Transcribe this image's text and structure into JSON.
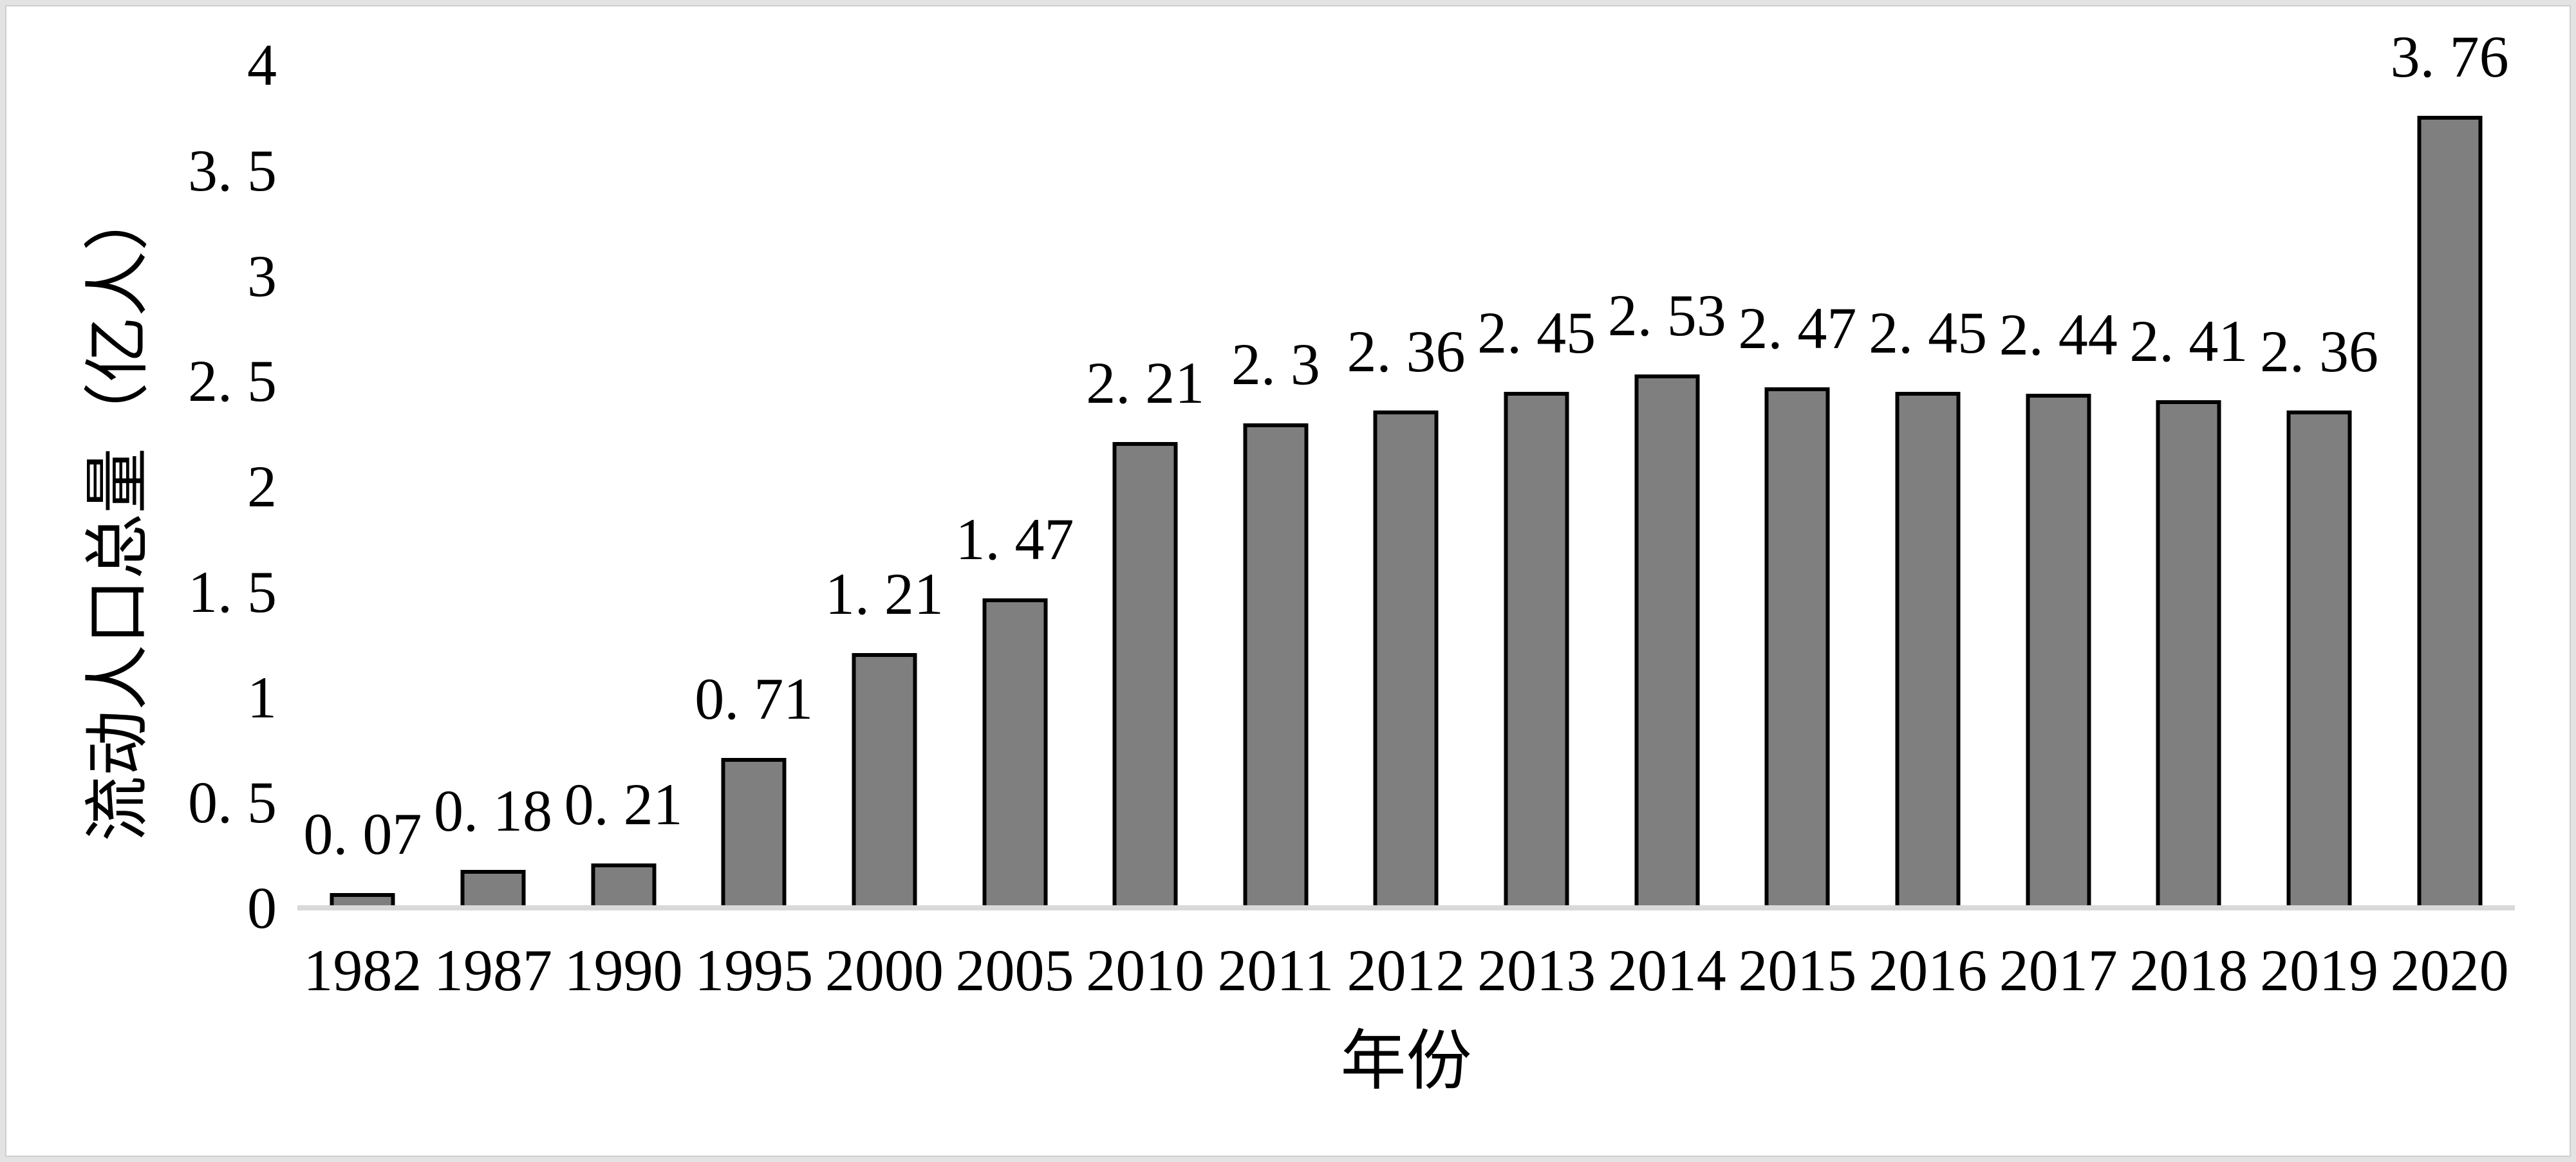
{
  "chart_data": {
    "type": "bar",
    "title": "",
    "categories": [
      "1982",
      "1987",
      "1990",
      "1995",
      "2000",
      "2005",
      "2010",
      "2011",
      "2012",
      "2013",
      "2014",
      "2015",
      "2016",
      "2017",
      "2018",
      "2019",
      "2020"
    ],
    "values": [
      0.07,
      0.18,
      0.21,
      0.71,
      1.21,
      1.47,
      2.21,
      2.3,
      2.36,
      2.45,
      2.53,
      2.47,
      2.45,
      2.44,
      2.41,
      2.36,
      3.76
    ],
    "data_labels": [
      "0.07",
      "0.18",
      "0.21",
      "0.71",
      "1.21",
      "1.47",
      "2.21",
      "2.3",
      "2.36",
      "2.45",
      "2.53",
      "2.47",
      "2.45",
      "2.44",
      "2.41",
      "2.36",
      "3.76"
    ],
    "xlabel": "年份",
    "ylabel": "流动人口总量（亿人）",
    "ylim": [
      0,
      4
    ],
    "yticks": [
      "0",
      "0.5",
      "1",
      "1.5",
      "2",
      "2.5",
      "3",
      "3.5",
      "4"
    ],
    "grid": false,
    "legend_position": "none",
    "colors": {
      "bar_fill": "#7f7f7f",
      "bar_border": "#000000",
      "axis_line": "#d9d9d9",
      "text": "#000000",
      "frame_border": "#e3e3e3",
      "background": "#ffffff"
    }
  }
}
